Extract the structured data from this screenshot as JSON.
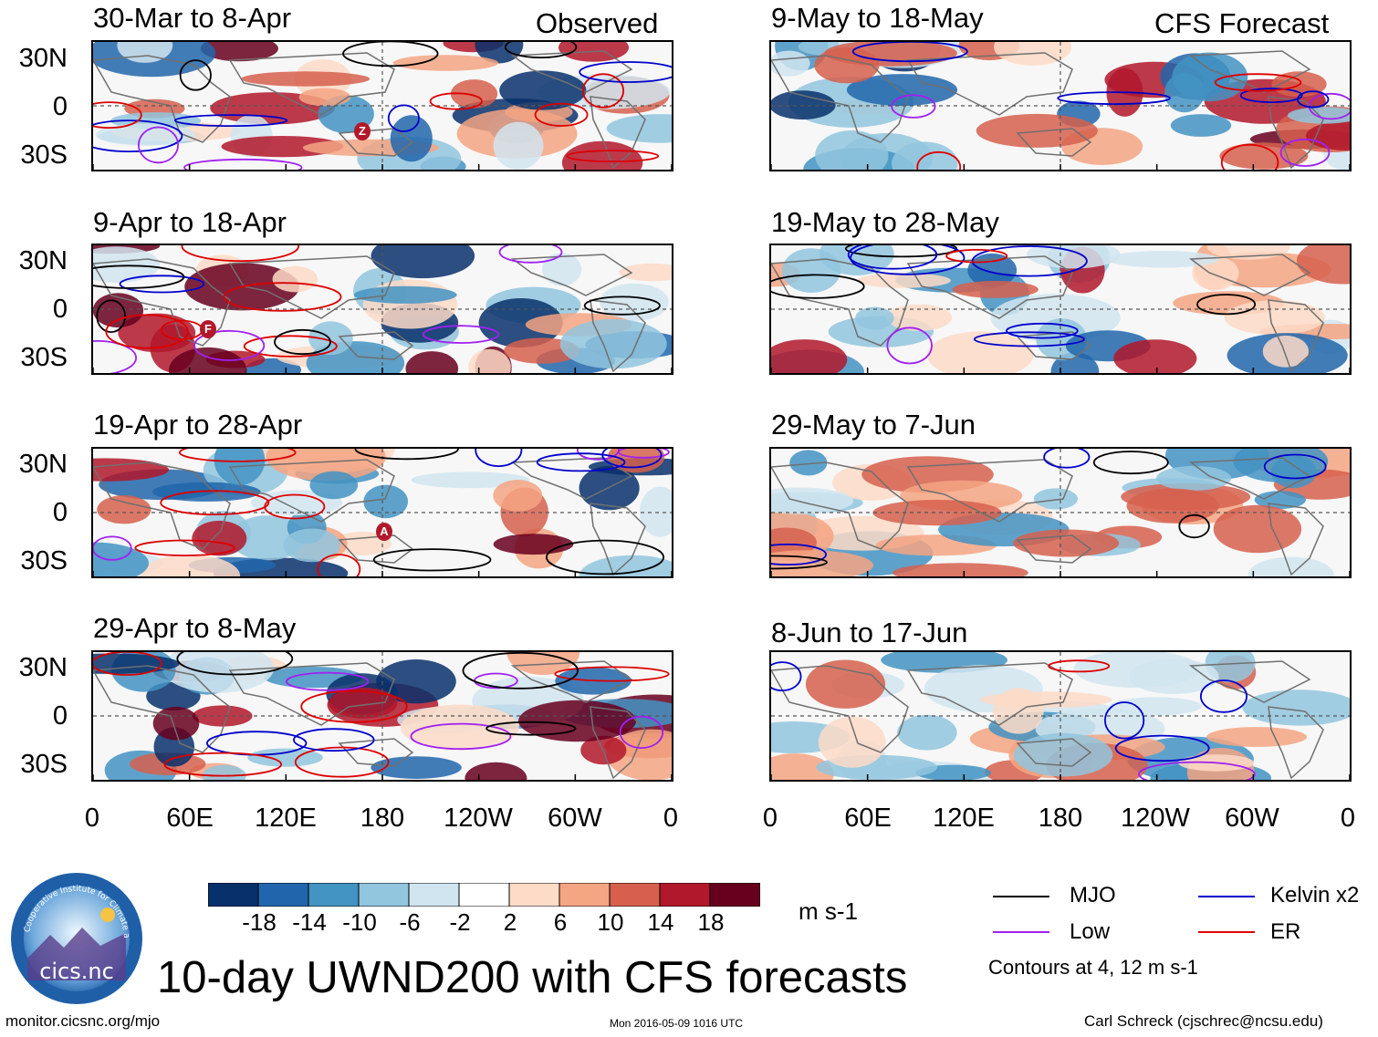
{
  "chart_data": {
    "type": "heatmap",
    "title": "10-day UWND200 with CFS forecasts",
    "variable": "UWND200",
    "units": "m s-1",
    "observed_label": "Observed",
    "forecast_label": "CFS Forecast",
    "y_ticks": [
      "30N",
      "0",
      "30S"
    ],
    "x_ticks": [
      "0",
      "60E",
      "120E",
      "180",
      "120W",
      "60W",
      "0"
    ],
    "colorbar": {
      "levels": [
        "-18",
        "-14",
        "-10",
        "-6",
        "-2",
        "2",
        "6",
        "10",
        "14",
        "18"
      ],
      "colors": [
        "#08306b",
        "#2166ac",
        "#4393c3",
        "#92c5de",
        "#d1e5f0",
        "#ffffff",
        "#fddbc7",
        "#f4a582",
        "#d6604d",
        "#b2182b",
        "#67001f"
      ]
    },
    "panels": [
      {
        "period": "30-Mar to 8-Apr",
        "source": "Observed"
      },
      {
        "period": "9-Apr to 18-Apr",
        "source": "Observed"
      },
      {
        "period": "19-Apr to 28-Apr",
        "source": "Observed"
      },
      {
        "period": "29-Apr to 8-May",
        "source": "Observed"
      },
      {
        "period": "9-May to 18-May",
        "source": "CFS Forecast"
      },
      {
        "period": "19-May to 28-May",
        "source": "CFS Forecast"
      },
      {
        "period": "29-May to 7-Jun",
        "source": "CFS Forecast"
      },
      {
        "period": "8-Jun to 17-Jun",
        "source": "CFS Forecast"
      }
    ],
    "contours": [
      {
        "name": "MJO",
        "color": "#000000"
      },
      {
        "name": "Kelvin x2",
        "color": "#0000cc"
      },
      {
        "name": "Low",
        "color": "#a020f0"
      },
      {
        "name": "ER",
        "color": "#dd0000"
      }
    ],
    "contour_note": "Contours at 4, 12 m s-1",
    "storm_markers": [
      "Z",
      "F",
      "A"
    ]
  },
  "footer": {
    "url": "monitor.cicsnc.org/mjo",
    "timestamp": "Mon 2016-05-09 1016 UTC",
    "author": "Carl Schreck (cjschrec@ncsu.edu)",
    "logo_text": "cics.nc",
    "logo_arc_text": "Cooperative Institute for Climate and Satellites"
  }
}
